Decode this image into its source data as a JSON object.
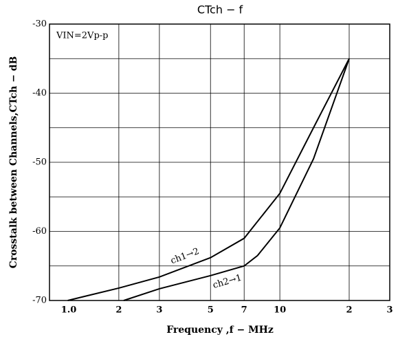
{
  "chart_data": {
    "type": "line",
    "title": "CTch − f",
    "xlabel": "Frequency ,f − MHz",
    "ylabel": "Crosstalk between Channels,CTch − dB",
    "annotation": "VIN=2Vp-p",
    "xscale": "log",
    "xlim": [
      1,
      30
    ],
    "ylim": [
      -70,
      -30
    ],
    "xticks": [
      {
        "value": 1,
        "label": "1.0"
      },
      2,
      3,
      5,
      7,
      10,
      {
        "value": 20,
        "label": "2"
      },
      {
        "value": 30,
        "label": "3"
      }
    ],
    "yticks": [
      -30,
      -40,
      -50,
      -60,
      -70
    ],
    "minor_yticks": [
      -35,
      -45,
      -55,
      -65
    ],
    "grid": true,
    "series": [
      {
        "name": "ch1→2",
        "color": "#000000",
        "x": [
          1.2,
          2,
          3,
          5,
          7,
          10,
          14,
          20
        ],
        "values": [
          -70,
          -68.2,
          -66.6,
          -63.8,
          -61,
          -54.5,
          -45,
          -35
        ]
      },
      {
        "name": "ch2→1",
        "color": "#000000",
        "x": [
          2.1,
          3,
          5,
          7,
          8,
          10,
          14,
          20
        ],
        "values": [
          -70,
          -68.3,
          -66.4,
          -65,
          -63.5,
          -59.5,
          -49.5,
          -35
        ]
      }
    ]
  }
}
